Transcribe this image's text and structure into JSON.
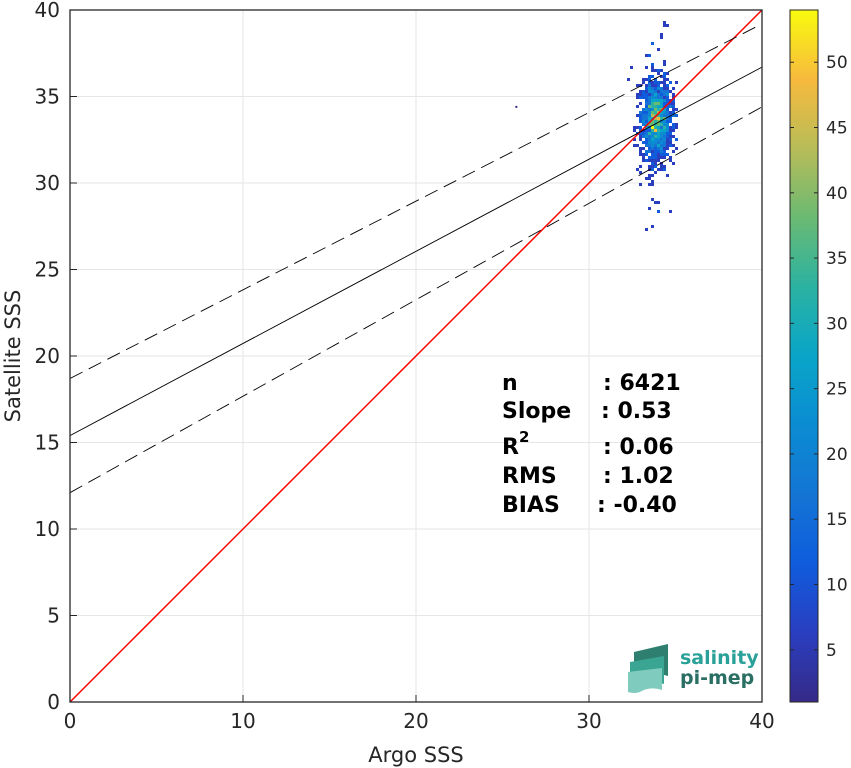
{
  "chart_data": {
    "type": "scatter",
    "subtype": "density-scatter",
    "xlabel": "Argo SSS",
    "ylabel": "Satellite SSS",
    "xlim": [
      0,
      40
    ],
    "ylim": [
      0,
      40
    ],
    "xticks": [
      "0",
      "10",
      "20",
      "30",
      "40"
    ],
    "yticks": [
      "0",
      "5",
      "10",
      "15",
      "20",
      "25",
      "30",
      "35",
      "40"
    ],
    "grid": true,
    "colorbar": {
      "colormap": "parula",
      "range": [
        1,
        54
      ],
      "ticks": [
        "5",
        "10",
        "15",
        "20",
        "25",
        "30",
        "35",
        "40",
        "45",
        "50"
      ]
    },
    "one_to_one_line": {
      "x": [
        0,
        40
      ],
      "y": [
        0,
        40
      ],
      "color": "#ff0000"
    },
    "regression_line": {
      "x": [
        0,
        40
      ],
      "y": [
        15.4,
        36.7
      ],
      "color": "#000000",
      "style": "solid"
    },
    "confidence_lines": [
      {
        "x": [
          0,
          40
        ],
        "y": [
          18.7,
          39.2
        ],
        "style": "dashed",
        "color": "#000000"
      },
      {
        "x": [
          0,
          40
        ],
        "y": [
          12.1,
          34.4
        ],
        "style": "dashed",
        "color": "#000000"
      }
    ],
    "density_cluster": {
      "x_center": 33.8,
      "y_center": 33.7,
      "x_range": [
        32.1,
        35.0
      ],
      "y_range": [
        26.6,
        39.4
      ],
      "peak_count": 54
    },
    "outliers": [
      {
        "x": 25.8,
        "y": 34.4
      }
    ],
    "stats": [
      {
        "label": "n",
        "value": ": 6421"
      },
      {
        "label": "Slope",
        "value": ": 0.53"
      },
      {
        "label": "R",
        "sup": "2",
        "value": ": 0.06"
      },
      {
        "label": "RMS",
        "value": ": 1.02"
      },
      {
        "label": "BIAS",
        "value": ": -0.40"
      }
    ]
  },
  "logo": {
    "line1": "salinity",
    "line2": "pi-mep",
    "color_teal": "#2aa198",
    "color_dark": "#2a6f63"
  }
}
